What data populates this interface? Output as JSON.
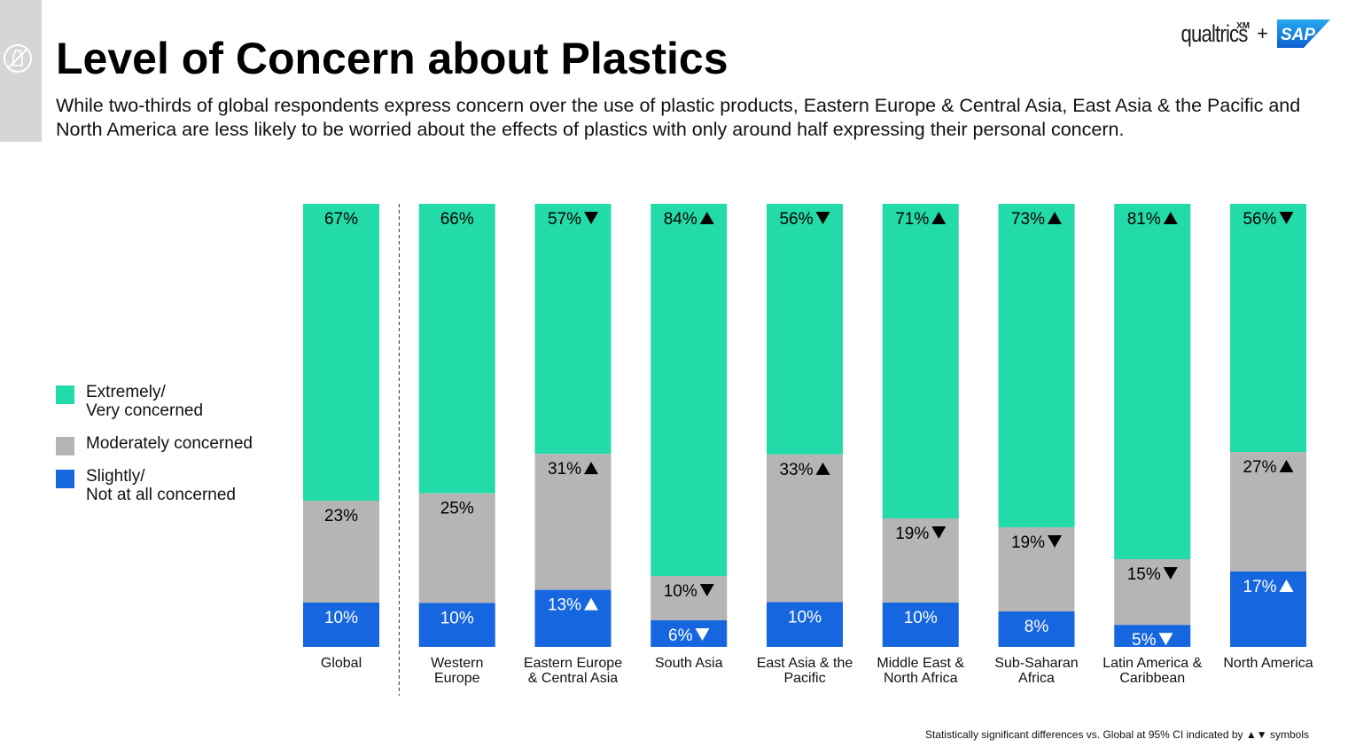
{
  "header": {
    "title": "Level of Concern about Plastics",
    "subtitle": "While two-thirds of global respondents express concern over the use of plastic products, Eastern Europe & Central Asia, East Asia & the Pacific and North America are less likely to be worried about the effects of plastics with only around half expressing their personal concern."
  },
  "logo": {
    "qualtrics": "qualtrics",
    "xm": "XM",
    "plus": "+",
    "sap": "SAP"
  },
  "colors": {
    "extremely": "#22dba8",
    "moderately": "#b5b5b5",
    "slightly": "#1666e0",
    "side_tab": "#d4d6d8"
  },
  "icons": {
    "side": "no-plastic-icon",
    "up": "up-triangle-icon",
    "down": "down-triangle-icon"
  },
  "chart_data": {
    "type": "bar",
    "stacked": true,
    "normalized": true,
    "categories": [
      "Global",
      "Western Europe",
      "Eastern Europe & Central Asia",
      "South Asia",
      "East Asia & the Pacific",
      "Middle East & North Africa",
      "Sub-Saharan Africa",
      "Latin America & Caribbean",
      "North America"
    ],
    "category_lines": [
      [
        "Global"
      ],
      [
        "Western",
        "Europe"
      ],
      [
        "Eastern Europe",
        "& Central Asia"
      ],
      [
        "South Asia"
      ],
      [
        "East Asia & the",
        "Pacific"
      ],
      [
        "Middle East &",
        "North Africa"
      ],
      [
        "Sub-Saharan",
        "Africa"
      ],
      [
        "Latin America &",
        "Caribbean"
      ],
      [
        "North America"
      ]
    ],
    "series": [
      {
        "name": "Extremely/ Very concerned",
        "legend_lines": [
          "Extremely/",
          "Very concerned"
        ],
        "color": "#22dba8",
        "values": [
          67,
          66,
          57,
          84,
          56,
          71,
          73,
          81,
          56
        ],
        "labels": [
          "67%",
          "66%",
          "57%",
          "84%",
          "56%",
          "71%",
          "73%",
          "81%",
          "56%"
        ],
        "significance": [
          "",
          "",
          "down",
          "up",
          "down",
          "up",
          "up",
          "up",
          "down"
        ]
      },
      {
        "name": "Moderately concerned",
        "legend_lines": [
          "Moderately concerned"
        ],
        "color": "#b5b5b5",
        "values": [
          23,
          25,
          31,
          10,
          33,
          19,
          19,
          15,
          27
        ],
        "labels": [
          "23%",
          "25%",
          "31%",
          "10%",
          "33%",
          "19%",
          "19%",
          "15%",
          "27%"
        ],
        "significance": [
          "",
          "",
          "up",
          "down",
          "up",
          "down",
          "down",
          "down",
          "up"
        ]
      },
      {
        "name": "Slightly/ Not at all concerned",
        "legend_lines": [
          "Slightly/",
          "Not at all concerned"
        ],
        "color": "#1666e0",
        "values": [
          10,
          10,
          13,
          6,
          10,
          10,
          8,
          5,
          17
        ],
        "labels": [
          "10%",
          "10%",
          "13%",
          "6%",
          "10%",
          "10%",
          "8%",
          "5%",
          "17%"
        ],
        "significance": [
          "",
          "",
          "up",
          "down",
          "",
          "",
          "",
          "down",
          "up"
        ]
      }
    ],
    "ylim": [
      0,
      100
    ],
    "grid": false,
    "legend_position": "left",
    "separator_after": "Global",
    "footnote": "Statistically significant differences vs. Global at 95% CI indicated by ▲▼ symbols"
  }
}
